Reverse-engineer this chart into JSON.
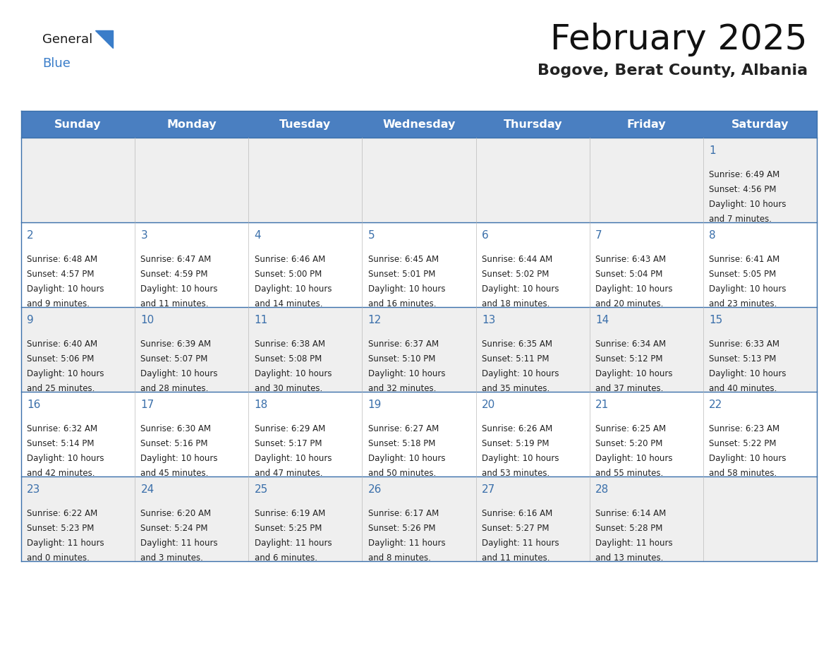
{
  "title": "February 2025",
  "subtitle": "Bogove, Berat County, Albania",
  "header_bg": "#4a7fc1",
  "header_text": "#FFFFFF",
  "header_days": [
    "Sunday",
    "Monday",
    "Tuesday",
    "Wednesday",
    "Thursday",
    "Friday",
    "Saturday"
  ],
  "odd_row_bg": "#FFFFFF",
  "even_row_bg": "#EFEFEF",
  "day_number_color": "#3a6faa",
  "cell_text_color": "#222222",
  "border_color": "#3a6faa",
  "logo_general_color": "#1a1a1a",
  "logo_blue_color": "#3a7DC9",
  "calendar_data": [
    [
      null,
      null,
      null,
      null,
      null,
      null,
      {
        "day": "1",
        "sunrise": "6:49 AM",
        "sunset": "4:56 PM",
        "daylight_line1": "10 hours",
        "daylight_line2": "and 7 minutes."
      }
    ],
    [
      {
        "day": "2",
        "sunrise": "6:48 AM",
        "sunset": "4:57 PM",
        "daylight_line1": "10 hours",
        "daylight_line2": "and 9 minutes."
      },
      {
        "day": "3",
        "sunrise": "6:47 AM",
        "sunset": "4:59 PM",
        "daylight_line1": "10 hours",
        "daylight_line2": "and 11 minutes."
      },
      {
        "day": "4",
        "sunrise": "6:46 AM",
        "sunset": "5:00 PM",
        "daylight_line1": "10 hours",
        "daylight_line2": "and 14 minutes."
      },
      {
        "day": "5",
        "sunrise": "6:45 AM",
        "sunset": "5:01 PM",
        "daylight_line1": "10 hours",
        "daylight_line2": "and 16 minutes."
      },
      {
        "day": "6",
        "sunrise": "6:44 AM",
        "sunset": "5:02 PM",
        "daylight_line1": "10 hours",
        "daylight_line2": "and 18 minutes."
      },
      {
        "day": "7",
        "sunrise": "6:43 AM",
        "sunset": "5:04 PM",
        "daylight_line1": "10 hours",
        "daylight_line2": "and 20 minutes."
      },
      {
        "day": "8",
        "sunrise": "6:41 AM",
        "sunset": "5:05 PM",
        "daylight_line1": "10 hours",
        "daylight_line2": "and 23 minutes."
      }
    ],
    [
      {
        "day": "9",
        "sunrise": "6:40 AM",
        "sunset": "5:06 PM",
        "daylight_line1": "10 hours",
        "daylight_line2": "and 25 minutes."
      },
      {
        "day": "10",
        "sunrise": "6:39 AM",
        "sunset": "5:07 PM",
        "daylight_line1": "10 hours",
        "daylight_line2": "and 28 minutes."
      },
      {
        "day": "11",
        "sunrise": "6:38 AM",
        "sunset": "5:08 PM",
        "daylight_line1": "10 hours",
        "daylight_line2": "and 30 minutes."
      },
      {
        "day": "12",
        "sunrise": "6:37 AM",
        "sunset": "5:10 PM",
        "daylight_line1": "10 hours",
        "daylight_line2": "and 32 minutes."
      },
      {
        "day": "13",
        "sunrise": "6:35 AM",
        "sunset": "5:11 PM",
        "daylight_line1": "10 hours",
        "daylight_line2": "and 35 minutes."
      },
      {
        "day": "14",
        "sunrise": "6:34 AM",
        "sunset": "5:12 PM",
        "daylight_line1": "10 hours",
        "daylight_line2": "and 37 minutes."
      },
      {
        "day": "15",
        "sunrise": "6:33 AM",
        "sunset": "5:13 PM",
        "daylight_line1": "10 hours",
        "daylight_line2": "and 40 minutes."
      }
    ],
    [
      {
        "day": "16",
        "sunrise": "6:32 AM",
        "sunset": "5:14 PM",
        "daylight_line1": "10 hours",
        "daylight_line2": "and 42 minutes."
      },
      {
        "day": "17",
        "sunrise": "6:30 AM",
        "sunset": "5:16 PM",
        "daylight_line1": "10 hours",
        "daylight_line2": "and 45 minutes."
      },
      {
        "day": "18",
        "sunrise": "6:29 AM",
        "sunset": "5:17 PM",
        "daylight_line1": "10 hours",
        "daylight_line2": "and 47 minutes."
      },
      {
        "day": "19",
        "sunrise": "6:27 AM",
        "sunset": "5:18 PM",
        "daylight_line1": "10 hours",
        "daylight_line2": "and 50 minutes."
      },
      {
        "day": "20",
        "sunrise": "6:26 AM",
        "sunset": "5:19 PM",
        "daylight_line1": "10 hours",
        "daylight_line2": "and 53 minutes."
      },
      {
        "day": "21",
        "sunrise": "6:25 AM",
        "sunset": "5:20 PM",
        "daylight_line1": "10 hours",
        "daylight_line2": "and 55 minutes."
      },
      {
        "day": "22",
        "sunrise": "6:23 AM",
        "sunset": "5:22 PM",
        "daylight_line1": "10 hours",
        "daylight_line2": "and 58 minutes."
      }
    ],
    [
      {
        "day": "23",
        "sunrise": "6:22 AM",
        "sunset": "5:23 PM",
        "daylight_line1": "11 hours",
        "daylight_line2": "and 0 minutes."
      },
      {
        "day": "24",
        "sunrise": "6:20 AM",
        "sunset": "5:24 PM",
        "daylight_line1": "11 hours",
        "daylight_line2": "and 3 minutes."
      },
      {
        "day": "25",
        "sunrise": "6:19 AM",
        "sunset": "5:25 PM",
        "daylight_line1": "11 hours",
        "daylight_line2": "and 6 minutes."
      },
      {
        "day": "26",
        "sunrise": "6:17 AM",
        "sunset": "5:26 PM",
        "daylight_line1": "11 hours",
        "daylight_line2": "and 8 minutes."
      },
      {
        "day": "27",
        "sunrise": "6:16 AM",
        "sunset": "5:27 PM",
        "daylight_line1": "11 hours",
        "daylight_line2": "and 11 minutes."
      },
      {
        "day": "28",
        "sunrise": "6:14 AM",
        "sunset": "5:28 PM",
        "daylight_line1": "11 hours",
        "daylight_line2": "and 13 minutes."
      },
      null
    ]
  ],
  "figsize": [
    11.88,
    9.18
  ],
  "dpi": 100
}
